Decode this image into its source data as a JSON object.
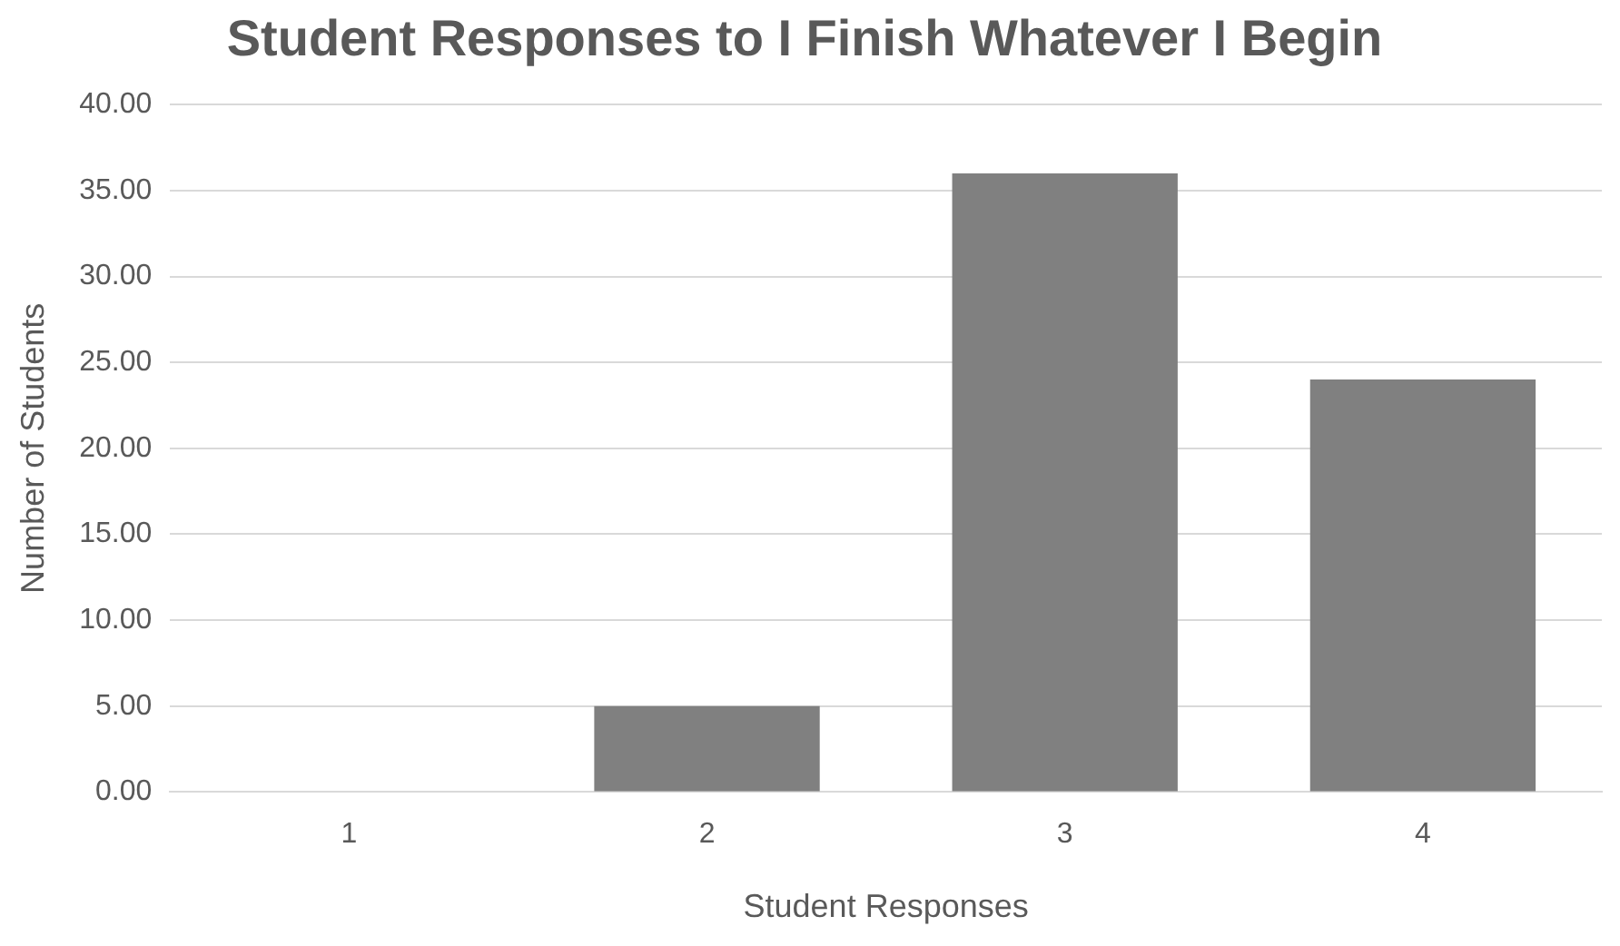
{
  "chart_data": {
    "type": "bar",
    "title": "Student Responses to I Finish Whatever I Begin",
    "xlabel": "Student Responses",
    "ylabel": "Number of Students",
    "categories": [
      "1",
      "2",
      "3",
      "4"
    ],
    "values": [
      0,
      5,
      36,
      24
    ],
    "color": "#808080",
    "ylim": [
      0,
      40
    ],
    "yticks": [
      {
        "value": 0,
        "label": "0.00"
      },
      {
        "value": 5,
        "label": "5.00"
      },
      {
        "value": 10,
        "label": "10.00"
      },
      {
        "value": 15,
        "label": "15.00"
      },
      {
        "value": 20,
        "label": "20.00"
      },
      {
        "value": 25,
        "label": "25.00"
      },
      {
        "value": 30,
        "label": "30.00"
      },
      {
        "value": 35,
        "label": "35.00"
      },
      {
        "value": 40,
        "label": "40.00"
      }
    ],
    "grid": "y",
    "legend": false
  }
}
